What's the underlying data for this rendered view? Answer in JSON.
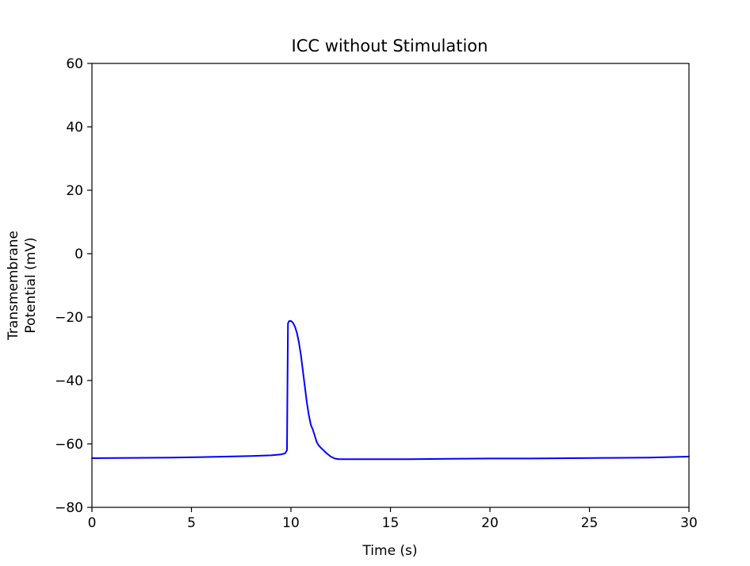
{
  "chart_data": {
    "type": "line",
    "title": "ICC without Stimulation",
    "xlabel": "Time (s)",
    "ylabel_lines": [
      "Transmembrane",
      "Potential (mV)"
    ],
    "xlim": [
      0,
      30
    ],
    "ylim": [
      -80,
      60
    ],
    "xticks": [
      0,
      5,
      10,
      15,
      20,
      25,
      30
    ],
    "yticks": [
      -80,
      -60,
      -40,
      -20,
      0,
      20,
      40,
      60
    ],
    "xtick_labels": [
      "0",
      "5",
      "10",
      "15",
      "20",
      "25",
      "30"
    ],
    "ytick_labels": [
      "−80",
      "−60",
      "−40",
      "−20",
      "0",
      "20",
      "40",
      "60"
    ],
    "grid": false,
    "series": [
      {
        "color": "#0000ff",
        "x": [
          0,
          2,
          4,
          6,
          8,
          9,
          9.5,
          9.7,
          9.8,
          9.82,
          9.85,
          9.9,
          10.0,
          10.1,
          10.2,
          10.3,
          10.4,
          10.5,
          10.6,
          10.7,
          10.8,
          10.9,
          11.0,
          11.1,
          11.2,
          11.3,
          11.4,
          11.5,
          11.6,
          11.8,
          12.0,
          12.2,
          12.4,
          12.6,
          13.0,
          14,
          16,
          18,
          20,
          22,
          24,
          26,
          28,
          30
        ],
        "y": [
          -64.5,
          -64.4,
          -64.3,
          -64.1,
          -63.8,
          -63.6,
          -63.3,
          -63.0,
          -62.0,
          -45.0,
          -22.0,
          -21.3,
          -21.2,
          -21.8,
          -23.0,
          -25.0,
          -28.0,
          -32.0,
          -37.0,
          -42.0,
          -47.0,
          -51.0,
          -54.0,
          -55.5,
          -57.5,
          -59.5,
          -60.5,
          -61.2,
          -61.8,
          -63.0,
          -64.0,
          -64.6,
          -64.8,
          -64.8,
          -64.8,
          -64.8,
          -64.8,
          -64.7,
          -64.6,
          -64.6,
          -64.5,
          -64.4,
          -64.3,
          -64.0
        ]
      }
    ]
  }
}
